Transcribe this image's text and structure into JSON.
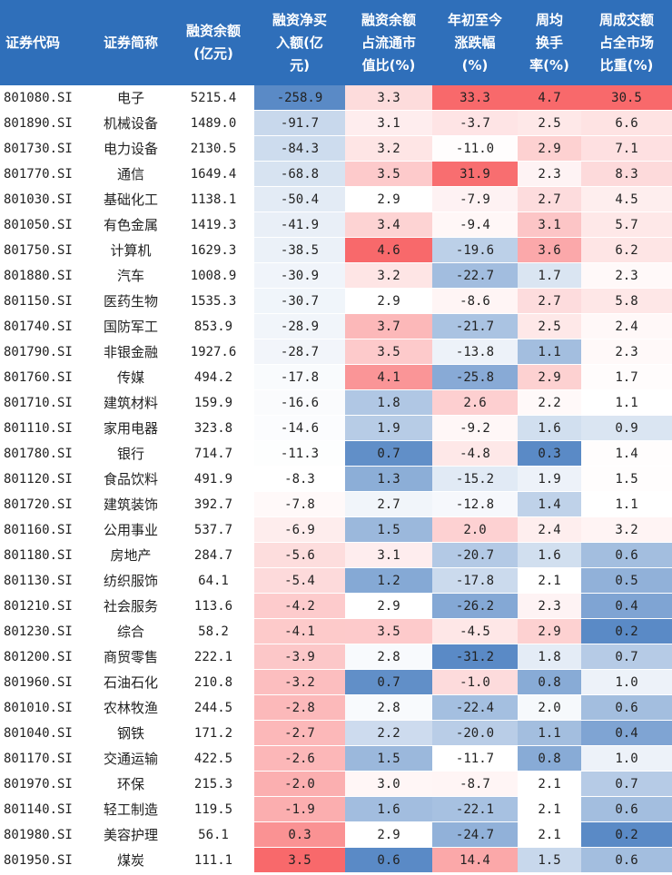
{
  "headers": [
    "证券代码",
    "证券简称",
    "融资余额\n(亿元)",
    "融资净买\n入额(亿\n元)",
    "融资余额\n占流通市\n值比(%)",
    "年初至今\n涨跌幅\n(%)",
    "周均\n换手\n率(%)",
    "周成交额\n占全市场\n比重(%)"
  ],
  "rows": [
    {
      "code": "801080.SI",
      "name": "电子",
      "balance": "5215.4",
      "netbuy": "-258.9",
      "ratio": "3.3",
      "ytd": "33.3",
      "turnover": "4.7",
      "share": "30.5"
    },
    {
      "code": "801890.SI",
      "name": "机械设备",
      "balance": "1489.0",
      "netbuy": "-91.7",
      "ratio": "3.1",
      "ytd": "-3.7",
      "turnover": "2.5",
      "share": "6.6"
    },
    {
      "code": "801730.SI",
      "name": "电力设备",
      "balance": "2130.5",
      "netbuy": "-84.3",
      "ratio": "3.2",
      "ytd": "-11.0",
      "turnover": "2.9",
      "share": "7.1"
    },
    {
      "code": "801770.SI",
      "name": "通信",
      "balance": "1649.4",
      "netbuy": "-68.8",
      "ratio": "3.5",
      "ytd": "31.9",
      "turnover": "2.3",
      "share": "8.3"
    },
    {
      "code": "801030.SI",
      "name": "基础化工",
      "balance": "1138.1",
      "netbuy": "-50.4",
      "ratio": "2.9",
      "ytd": "-7.9",
      "turnover": "2.7",
      "share": "4.5"
    },
    {
      "code": "801050.SI",
      "name": "有色金属",
      "balance": "1419.3",
      "netbuy": "-41.9",
      "ratio": "3.4",
      "ytd": "-9.4",
      "turnover": "3.1",
      "share": "5.7"
    },
    {
      "code": "801750.SI",
      "name": "计算机",
      "balance": "1629.3",
      "netbuy": "-38.5",
      "ratio": "4.6",
      "ytd": "-19.6",
      "turnover": "3.6",
      "share": "6.2"
    },
    {
      "code": "801880.SI",
      "name": "汽车",
      "balance": "1008.9",
      "netbuy": "-30.9",
      "ratio": "3.2",
      "ytd": "-22.7",
      "turnover": "1.7",
      "share": "2.3"
    },
    {
      "code": "801150.SI",
      "name": "医药生物",
      "balance": "1535.3",
      "netbuy": "-30.7",
      "ratio": "2.9",
      "ytd": "-8.6",
      "turnover": "2.7",
      "share": "5.8"
    },
    {
      "code": "801740.SI",
      "name": "国防军工",
      "balance": "853.9",
      "netbuy": "-28.9",
      "ratio": "3.7",
      "ytd": "-21.7",
      "turnover": "2.5",
      "share": "2.4"
    },
    {
      "code": "801790.SI",
      "name": "非银金融",
      "balance": "1927.6",
      "netbuy": "-28.7",
      "ratio": "3.5",
      "ytd": "-13.8",
      "turnover": "1.1",
      "share": "2.3"
    },
    {
      "code": "801760.SI",
      "name": "传媒",
      "balance": "494.2",
      "netbuy": "-17.8",
      "ratio": "4.1",
      "ytd": "-25.8",
      "turnover": "2.9",
      "share": "1.7"
    },
    {
      "code": "801710.SI",
      "name": "建筑材料",
      "balance": "159.9",
      "netbuy": "-16.6",
      "ratio": "1.8",
      "ytd": "2.6",
      "turnover": "2.2",
      "share": "1.1"
    },
    {
      "code": "801110.SI",
      "name": "家用电器",
      "balance": "323.8",
      "netbuy": "-14.6",
      "ratio": "1.9",
      "ytd": "-9.2",
      "turnover": "1.6",
      "share": "0.9"
    },
    {
      "code": "801780.SI",
      "name": "银行",
      "balance": "714.7",
      "netbuy": "-11.3",
      "ratio": "0.7",
      "ytd": "-4.8",
      "turnover": "0.3",
      "share": "1.4"
    },
    {
      "code": "801120.SI",
      "name": "食品饮料",
      "balance": "491.9",
      "netbuy": "-8.3",
      "ratio": "1.3",
      "ytd": "-15.2",
      "turnover": "1.9",
      "share": "1.5"
    },
    {
      "code": "801720.SI",
      "name": "建筑装饰",
      "balance": "392.7",
      "netbuy": "-7.8",
      "ratio": "2.7",
      "ytd": "-12.8",
      "turnover": "1.4",
      "share": "1.1"
    },
    {
      "code": "801160.SI",
      "name": "公用事业",
      "balance": "537.7",
      "netbuy": "-6.9",
      "ratio": "1.5",
      "ytd": "2.0",
      "turnover": "2.4",
      "share": "3.2"
    },
    {
      "code": "801180.SI",
      "name": "房地产",
      "balance": "284.7",
      "netbuy": "-5.6",
      "ratio": "3.1",
      "ytd": "-20.7",
      "turnover": "1.6",
      "share": "0.6"
    },
    {
      "code": "801130.SI",
      "name": "纺织服饰",
      "balance": "64.1",
      "netbuy": "-5.4",
      "ratio": "1.2",
      "ytd": "-17.8",
      "turnover": "2.1",
      "share": "0.5"
    },
    {
      "code": "801210.SI",
      "name": "社会服务",
      "balance": "113.6",
      "netbuy": "-4.2",
      "ratio": "2.9",
      "ytd": "-26.2",
      "turnover": "2.3",
      "share": "0.4"
    },
    {
      "code": "801230.SI",
      "name": "综合",
      "balance": "58.2",
      "netbuy": "-4.1",
      "ratio": "3.5",
      "ytd": "-4.5",
      "turnover": "2.9",
      "share": "0.2"
    },
    {
      "code": "801200.SI",
      "name": "商贸零售",
      "balance": "222.1",
      "netbuy": "-3.9",
      "ratio": "2.8",
      "ytd": "-31.2",
      "turnover": "1.8",
      "share": "0.7"
    },
    {
      "code": "801960.SI",
      "name": "石油石化",
      "balance": "210.8",
      "netbuy": "-3.2",
      "ratio": "0.7",
      "ytd": "-1.0",
      "turnover": "0.8",
      "share": "1.0"
    },
    {
      "code": "801010.SI",
      "name": "农林牧渔",
      "balance": "244.5",
      "netbuy": "-2.8",
      "ratio": "2.8",
      "ytd": "-22.4",
      "turnover": "2.0",
      "share": "0.6"
    },
    {
      "code": "801040.SI",
      "name": "钢铁",
      "balance": "171.2",
      "netbuy": "-2.7",
      "ratio": "2.2",
      "ytd": "-20.0",
      "turnover": "1.1",
      "share": "0.4"
    },
    {
      "code": "801170.SI",
      "name": "交通运输",
      "balance": "422.5",
      "netbuy": "-2.6",
      "ratio": "1.5",
      "ytd": "-11.7",
      "turnover": "0.8",
      "share": "1.0"
    },
    {
      "code": "801970.SI",
      "name": "环保",
      "balance": "215.3",
      "netbuy": "-2.0",
      "ratio": "3.0",
      "ytd": "-8.7",
      "turnover": "2.1",
      "share": "0.7"
    },
    {
      "code": "801140.SI",
      "name": "轻工制造",
      "balance": "119.5",
      "netbuy": "-1.9",
      "ratio": "1.6",
      "ytd": "-22.1",
      "turnover": "2.1",
      "share": "0.6"
    },
    {
      "code": "801980.SI",
      "name": "美容护理",
      "balance": "56.1",
      "netbuy": "0.3",
      "ratio": "2.9",
      "ytd": "-24.7",
      "turnover": "2.1",
      "share": "0.2"
    },
    {
      "code": "801950.SI",
      "name": "煤炭",
      "balance": "111.1",
      "netbuy": "3.5",
      "ratio": "0.6",
      "ytd": "14.4",
      "turnover": "1.5",
      "share": "0.6"
    }
  ],
  "colors": {
    "header_bg": "#2f6fba",
    "high": "#f8696b",
    "mid": "#ffffff",
    "low": "#5a8ac6"
  }
}
